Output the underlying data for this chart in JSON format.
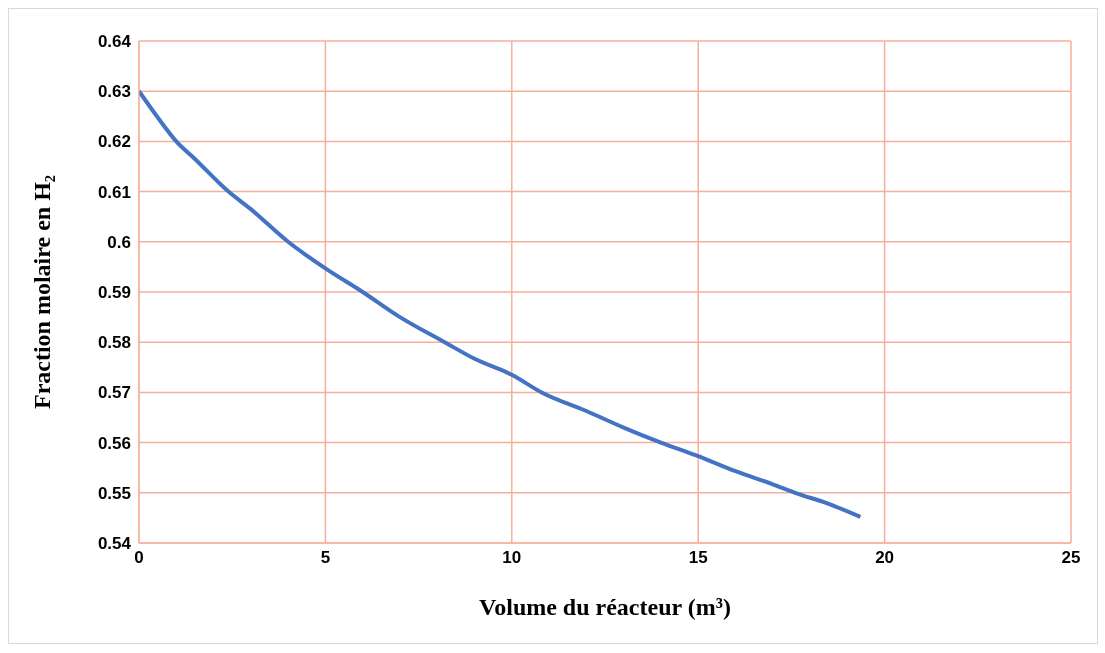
{
  "chart_data": {
    "type": "line",
    "xlabel": "Volume du réacteur (m³)",
    "ylabel": "Fraction molaire en H₂",
    "x": [
      0,
      0.5,
      1,
      1.5,
      2.4,
      3,
      4,
      5,
      6,
      7,
      8.2,
      9,
      10,
      10.8,
      12,
      13,
      14,
      15,
      16,
      17,
      17.6,
      18.5,
      19.35
    ],
    "series": [
      {
        "color": "#4472c4",
        "values": [
          0.63,
          0.6248,
          0.62,
          0.6165,
          0.61,
          0.6065,
          0.6,
          0.5947,
          0.59,
          0.585,
          0.58,
          0.5767,
          0.5735,
          0.57,
          0.5663,
          0.563,
          0.56,
          0.5573,
          0.5543,
          0.5517,
          0.55,
          0.5478,
          0.5452
        ]
      }
    ],
    "xlim": [
      0,
      25
    ],
    "xticks": [
      0,
      5,
      10,
      15,
      20,
      25
    ],
    "ylim": [
      0.54,
      0.64
    ],
    "yticks": [
      0.54,
      0.55,
      0.56,
      0.57,
      0.58,
      0.59,
      0.6,
      0.61,
      0.62,
      0.63,
      0.64
    ],
    "grid": true,
    "legend": false,
    "marker": "none",
    "line_style": "solid"
  }
}
